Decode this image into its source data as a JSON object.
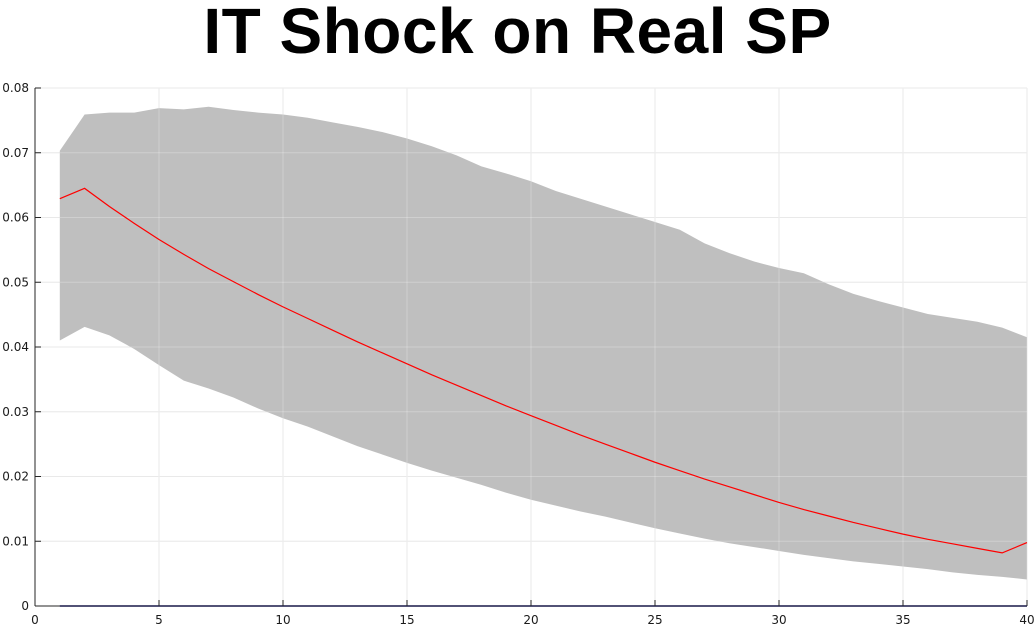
{
  "chart_data": {
    "type": "line",
    "title": "IT Shock on Real SP",
    "xlabel": "",
    "ylabel": "",
    "xlim": [
      0,
      40
    ],
    "ylim": [
      0,
      0.08
    ],
    "xticks": [
      0,
      5,
      10,
      15,
      20,
      25,
      30,
      35,
      40
    ],
    "yticks": [
      0,
      0.01,
      0.02,
      0.03,
      0.04,
      0.05,
      0.06,
      0.07,
      0.08
    ],
    "xtick_labels": [
      "0",
      "5",
      "10",
      "15",
      "20",
      "25",
      "30",
      "35",
      "40"
    ],
    "ytick_labels": [
      "0",
      "0.01",
      "0.02",
      "0.03",
      "0.04",
      "0.05",
      "0.06",
      "0.07",
      "0.08"
    ],
    "grid": true,
    "x": [
      1,
      2,
      3,
      4,
      5,
      6,
      7,
      8,
      9,
      10,
      11,
      12,
      13,
      14,
      15,
      16,
      17,
      18,
      19,
      20,
      21,
      22,
      23,
      24,
      25,
      26,
      27,
      28,
      29,
      30,
      31,
      32,
      33,
      34,
      35,
      36,
      37,
      38,
      39,
      40
    ],
    "band": {
      "color": "#bfbfbf",
      "upper": [
        0.0703,
        0.0759,
        0.0762,
        0.0762,
        0.0769,
        0.0767,
        0.0771,
        0.0766,
        0.0762,
        0.0759,
        0.0754,
        0.0747,
        0.074,
        0.0732,
        0.0722,
        0.071,
        0.0696,
        0.0679,
        0.0668,
        0.0656,
        0.0641,
        0.0629,
        0.0617,
        0.0605,
        0.0593,
        0.0581,
        0.056,
        0.0545,
        0.0532,
        0.0522,
        0.0514,
        0.0497,
        0.0482,
        0.0471,
        0.0461,
        0.0451,
        0.0445,
        0.0439,
        0.043,
        0.0415
      ],
      "lower": [
        0.041,
        0.0431,
        0.0418,
        0.0397,
        0.0372,
        0.0348,
        0.0336,
        0.0322,
        0.0305,
        0.029,
        0.0277,
        0.0262,
        0.0247,
        0.0234,
        0.0221,
        0.0209,
        0.0198,
        0.0187,
        0.0175,
        0.0164,
        0.0155,
        0.0146,
        0.0138,
        0.0129,
        0.012,
        0.0112,
        0.0104,
        0.0097,
        0.0091,
        0.0085,
        0.0079,
        0.0074,
        0.0069,
        0.0065,
        0.0061,
        0.0057,
        0.0052,
        0.0048,
        0.0045,
        0.0041
      ]
    },
    "series": [
      {
        "color": "#ff0000",
        "values": [
          0.0629,
          0.0645,
          0.0617,
          0.0591,
          0.0566,
          0.0543,
          0.0521,
          0.0501,
          0.0481,
          0.0462,
          0.0444,
          0.0426,
          0.0408,
          0.0391,
          0.0374,
          0.0357,
          0.0341,
          0.0325,
          0.0309,
          0.0294,
          0.0279,
          0.0264,
          0.025,
          0.0236,
          0.0222,
          0.0209,
          0.0196,
          0.0184,
          0.0172,
          0.016,
          0.0149,
          0.0139,
          0.0129,
          0.012,
          0.0111,
          0.0103,
          0.0096,
          0.0089,
          0.0082,
          0.0098
        ]
      },
      {
        "color": "#00008b",
        "values": [
          0,
          0,
          0,
          0,
          0,
          0,
          0,
          0,
          0,
          0,
          0,
          0,
          0,
          0,
          0,
          0,
          0,
          0,
          0,
          0,
          0,
          0,
          0,
          0,
          0,
          0,
          0,
          0,
          0,
          0,
          0,
          0,
          0,
          0,
          0,
          0,
          0,
          0,
          0,
          0
        ]
      }
    ]
  }
}
